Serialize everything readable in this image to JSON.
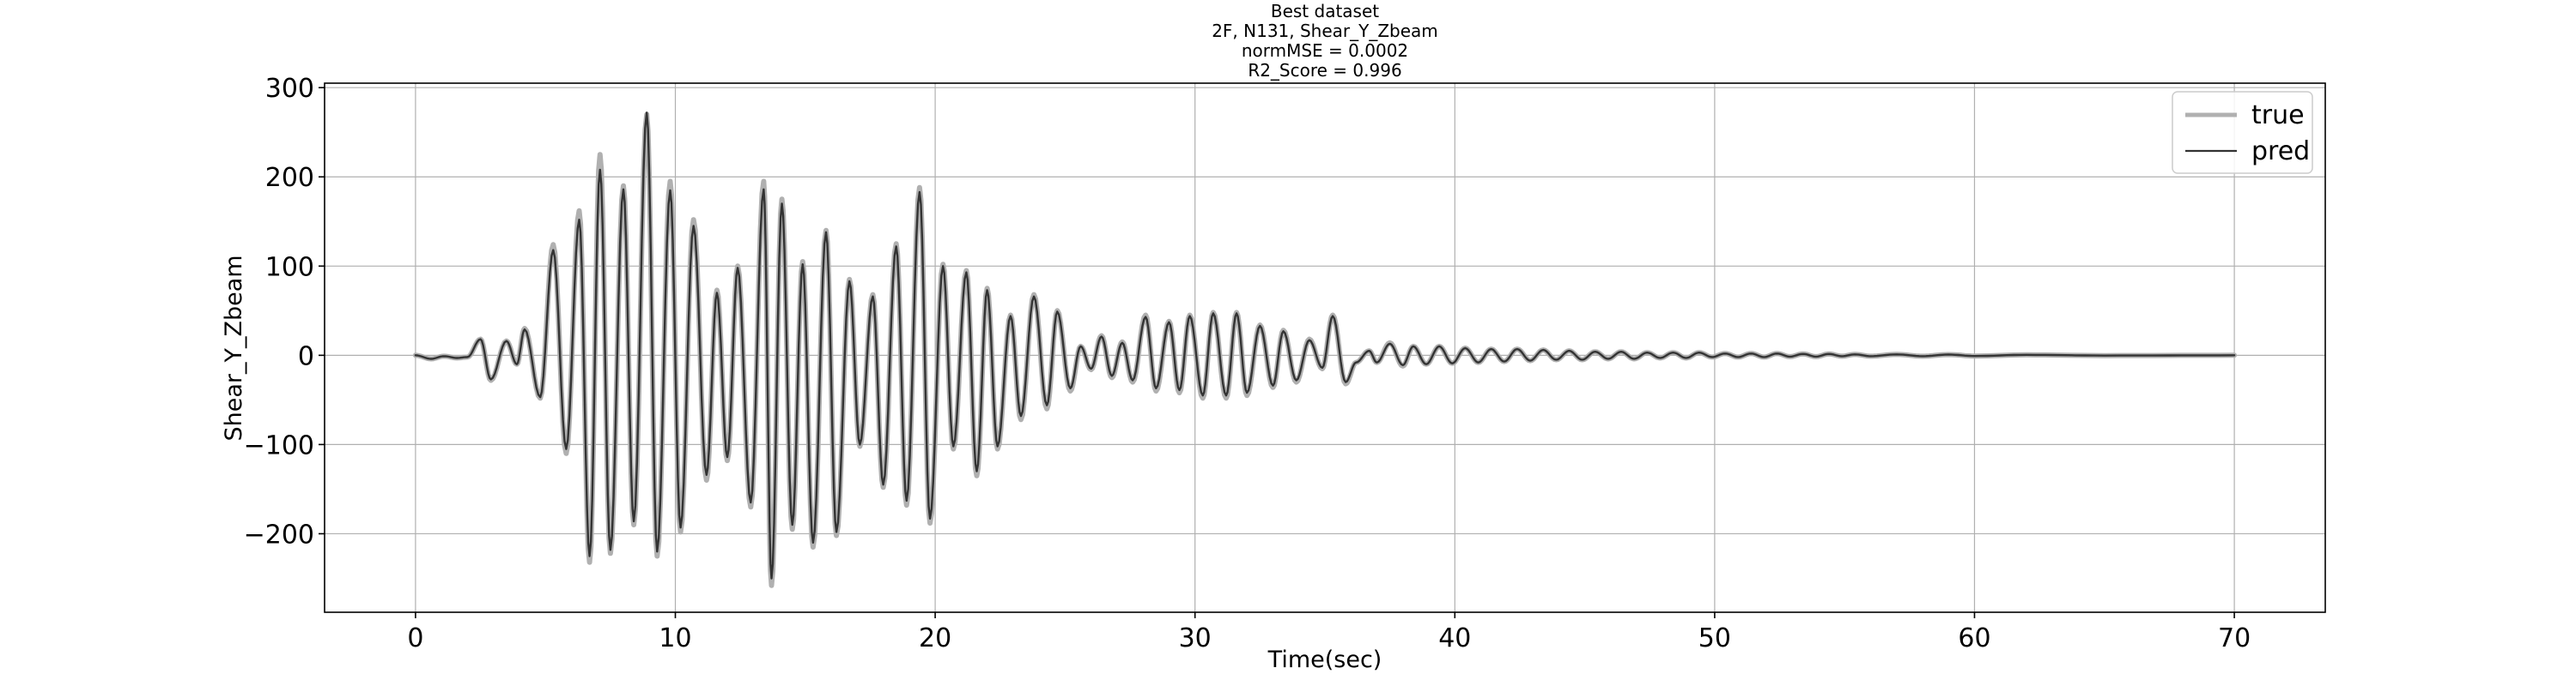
{
  "chart_data": {
    "type": "line",
    "title_lines": [
      "Best dataset",
      "2F, N131, Shear_Y_Zbeam",
      "normMSE = 0.0002",
      "R2_Score = 0.996"
    ],
    "xlabel": "Time(sec)",
    "ylabel": "Shear_Y_Zbeam",
    "xlim": [
      -3.5,
      73.5
    ],
    "ylim": [
      -288,
      305
    ],
    "xticks": [
      0,
      10,
      20,
      30,
      40,
      50,
      60,
      70
    ],
    "yticks": [
      -200,
      -100,
      0,
      100,
      200,
      300
    ],
    "xtick_labels": [
      "0",
      "10",
      "20",
      "30",
      "40",
      "50",
      "60",
      "70"
    ],
    "ytick_labels": [
      "−200",
      "−100",
      "0",
      "100",
      "200",
      "300"
    ],
    "grid": true,
    "legend_position": "top-right",
    "series": [
      {
        "name": "true",
        "color": "#b0b0b0",
        "peaks": [
          [
            0,
            0
          ],
          [
            0.6,
            -4
          ],
          [
            1.1,
            -1
          ],
          [
            1.6,
            -3
          ],
          [
            2.0,
            -2
          ],
          [
            2.5,
            18
          ],
          [
            2.9,
            -28
          ],
          [
            3.5,
            16
          ],
          [
            3.9,
            -10
          ],
          [
            4.2,
            30
          ],
          [
            4.8,
            -48
          ],
          [
            5.3,
            124
          ],
          [
            5.8,
            -110
          ],
          [
            6.3,
            162
          ],
          [
            6.7,
            -232
          ],
          [
            7.1,
            225
          ],
          [
            7.5,
            -222
          ],
          [
            8.0,
            190
          ],
          [
            8.4,
            -190
          ],
          [
            8.9,
            270
          ],
          [
            9.3,
            -225
          ],
          [
            9.8,
            195
          ],
          [
            10.2,
            -198
          ],
          [
            10.7,
            152
          ],
          [
            11.2,
            -140
          ],
          [
            11.6,
            73
          ],
          [
            12.0,
            -118
          ],
          [
            12.4,
            100
          ],
          [
            12.9,
            -170
          ],
          [
            13.4,
            195
          ],
          [
            13.7,
            -258
          ],
          [
            14.1,
            175
          ],
          [
            14.5,
            -195
          ],
          [
            14.9,
            105
          ],
          [
            15.3,
            -215
          ],
          [
            15.8,
            140
          ],
          [
            16.2,
            -202
          ],
          [
            16.7,
            85
          ],
          [
            17.1,
            -102
          ],
          [
            17.6,
            68
          ],
          [
            18.0,
            -148
          ],
          [
            18.5,
            125
          ],
          [
            18.9,
            -168
          ],
          [
            19.4,
            188
          ],
          [
            19.8,
            -188
          ],
          [
            20.3,
            102
          ],
          [
            20.7,
            -105
          ],
          [
            21.2,
            95
          ],
          [
            21.6,
            -135
          ],
          [
            22.0,
            75
          ],
          [
            22.4,
            -105
          ],
          [
            22.9,
            45
          ],
          [
            23.3,
            -72
          ],
          [
            23.8,
            68
          ],
          [
            24.3,
            -60
          ],
          [
            24.7,
            50
          ],
          [
            25.2,
            -40
          ],
          [
            25.6,
            10
          ],
          [
            26.0,
            -16
          ],
          [
            26.4,
            22
          ],
          [
            26.8,
            -25
          ],
          [
            27.2,
            15
          ],
          [
            27.6,
            -30
          ],
          [
            28.1,
            45
          ],
          [
            28.5,
            -40
          ],
          [
            29.0,
            38
          ],
          [
            29.4,
            -42
          ],
          [
            29.8,
            45
          ],
          [
            30.3,
            -48
          ],
          [
            30.7,
            48
          ],
          [
            31.2,
            -48
          ],
          [
            31.6,
            48
          ],
          [
            32.0,
            -45
          ],
          [
            32.5,
            34
          ],
          [
            33.0,
            -36
          ],
          [
            33.4,
            28
          ],
          [
            33.9,
            -30
          ],
          [
            34.4,
            18
          ],
          [
            34.9,
            -15
          ],
          [
            35.3,
            45
          ],
          [
            35.8,
            -32
          ],
          [
            36.2,
            -8
          ],
          [
            36.7,
            5
          ],
          [
            37.0,
            -8
          ],
          [
            37.5,
            14
          ],
          [
            38.0,
            -12
          ],
          [
            38.4,
            10
          ],
          [
            38.9,
            -10
          ],
          [
            39.4,
            10
          ],
          [
            39.9,
            -9
          ],
          [
            40.4,
            8
          ],
          [
            40.9,
            -8
          ],
          [
            41.4,
            7
          ],
          [
            41.9,
            -7
          ],
          [
            42.4,
            7
          ],
          [
            42.9,
            -6
          ],
          [
            43.4,
            6
          ],
          [
            43.9,
            -5
          ],
          [
            44.4,
            5
          ],
          [
            44.9,
            -5
          ],
          [
            45.4,
            4
          ],
          [
            45.9,
            -4
          ],
          [
            46.4,
            4
          ],
          [
            46.9,
            -4
          ],
          [
            47.4,
            3
          ],
          [
            47.9,
            -3
          ],
          [
            48.4,
            3
          ],
          [
            48.9,
            -3
          ],
          [
            49.4,
            3
          ],
          [
            49.9,
            -2
          ],
          [
            50.4,
            2
          ],
          [
            50.9,
            -2
          ],
          [
            51.4,
            2
          ],
          [
            51.9,
            -2
          ],
          [
            52.4,
            2
          ],
          [
            52.9,
            -1.5
          ],
          [
            53.4,
            1.5
          ],
          [
            53.9,
            -1.5
          ],
          [
            54.4,
            1.5
          ],
          [
            54.9,
            -1
          ],
          [
            55.4,
            1
          ],
          [
            56.0,
            -1
          ],
          [
            57.0,
            1
          ],
          [
            58.0,
            -1
          ],
          [
            59.0,
            0.8
          ],
          [
            60.0,
            -0.8
          ],
          [
            62.0,
            0.5
          ],
          [
            65.0,
            -0.3
          ],
          [
            70.0,
            0
          ]
        ]
      },
      {
        "name": "pred",
        "color": "#333333",
        "peaks": [
          [
            0,
            0
          ],
          [
            0.6,
            -4
          ],
          [
            1.1,
            -1
          ],
          [
            1.6,
            -3
          ],
          [
            2.0,
            -2
          ],
          [
            2.5,
            18
          ],
          [
            2.9,
            -27
          ],
          [
            3.5,
            16
          ],
          [
            3.9,
            -10
          ],
          [
            4.2,
            29
          ],
          [
            4.8,
            -47
          ],
          [
            5.3,
            118
          ],
          [
            5.8,
            -105
          ],
          [
            6.3,
            152
          ],
          [
            6.7,
            -225
          ],
          [
            7.1,
            208
          ],
          [
            7.5,
            -218
          ],
          [
            8.0,
            186
          ],
          [
            8.4,
            -186
          ],
          [
            8.9,
            272
          ],
          [
            9.3,
            -220
          ],
          [
            9.8,
            185
          ],
          [
            10.2,
            -193
          ],
          [
            10.7,
            145
          ],
          [
            11.2,
            -134
          ],
          [
            11.6,
            70
          ],
          [
            12.0,
            -114
          ],
          [
            12.4,
            98
          ],
          [
            12.9,
            -165
          ],
          [
            13.4,
            186
          ],
          [
            13.7,
            -250
          ],
          [
            14.1,
            170
          ],
          [
            14.5,
            -190
          ],
          [
            14.9,
            102
          ],
          [
            15.3,
            -210
          ],
          [
            15.8,
            138
          ],
          [
            16.2,
            -198
          ],
          [
            16.7,
            83
          ],
          [
            17.1,
            -100
          ],
          [
            17.6,
            66
          ],
          [
            18.0,
            -145
          ],
          [
            18.5,
            122
          ],
          [
            18.9,
            -163
          ],
          [
            19.4,
            183
          ],
          [
            19.8,
            -183
          ],
          [
            20.3,
            100
          ],
          [
            20.7,
            -102
          ],
          [
            21.2,
            93
          ],
          [
            21.6,
            -130
          ],
          [
            22.0,
            73
          ],
          [
            22.4,
            -102
          ],
          [
            22.9,
            44
          ],
          [
            23.3,
            -68
          ],
          [
            23.8,
            66
          ],
          [
            24.3,
            -56
          ],
          [
            24.7,
            49
          ],
          [
            25.2,
            -37
          ],
          [
            25.6,
            10
          ],
          [
            26.0,
            -15
          ],
          [
            26.4,
            21
          ],
          [
            26.8,
            -23
          ],
          [
            27.2,
            14
          ],
          [
            27.6,
            -28
          ],
          [
            28.1,
            43
          ],
          [
            28.5,
            -37
          ],
          [
            29.0,
            37
          ],
          [
            29.4,
            -39
          ],
          [
            29.8,
            44
          ],
          [
            30.3,
            -45
          ],
          [
            30.7,
            47
          ],
          [
            31.2,
            -45
          ],
          [
            31.6,
            47
          ],
          [
            32.0,
            -42
          ],
          [
            32.5,
            33
          ],
          [
            33.0,
            -34
          ],
          [
            33.4,
            27
          ],
          [
            33.9,
            -28
          ],
          [
            34.4,
            17
          ],
          [
            34.9,
            -14
          ],
          [
            35.3,
            44
          ],
          [
            35.8,
            -30
          ],
          [
            36.2,
            -8
          ],
          [
            36.7,
            5
          ],
          [
            37.0,
            -8
          ],
          [
            37.5,
            13
          ],
          [
            38.0,
            -11
          ],
          [
            38.4,
            10
          ],
          [
            38.9,
            -10
          ],
          [
            39.4,
            10
          ],
          [
            39.9,
            -9
          ],
          [
            40.4,
            8
          ],
          [
            40.9,
            -8
          ],
          [
            41.4,
            7
          ],
          [
            41.9,
            -7
          ],
          [
            42.4,
            7
          ],
          [
            42.9,
            -6
          ],
          [
            43.4,
            6
          ],
          [
            43.9,
            -5
          ],
          [
            44.4,
            5
          ],
          [
            44.9,
            -5
          ],
          [
            45.4,
            4
          ],
          [
            45.9,
            -4
          ],
          [
            46.4,
            4
          ],
          [
            46.9,
            -4
          ],
          [
            47.4,
            3
          ],
          [
            47.9,
            -3
          ],
          [
            48.4,
            3
          ],
          [
            48.9,
            -3
          ],
          [
            49.4,
            3
          ],
          [
            49.9,
            -2
          ],
          [
            50.4,
            2
          ],
          [
            50.9,
            -2
          ],
          [
            51.4,
            2
          ],
          [
            51.9,
            -2
          ],
          [
            52.4,
            2
          ],
          [
            52.9,
            -1.5
          ],
          [
            53.4,
            1.5
          ],
          [
            53.9,
            -1.5
          ],
          [
            54.4,
            1.5
          ],
          [
            54.9,
            -1
          ],
          [
            55.4,
            1
          ],
          [
            56.0,
            -1
          ],
          [
            57.0,
            1
          ],
          [
            58.0,
            -1
          ],
          [
            59.0,
            0.8
          ],
          [
            60.0,
            -0.8
          ],
          [
            62.0,
            0.5
          ],
          [
            65.0,
            -0.3
          ],
          [
            70.0,
            0
          ]
        ]
      }
    ]
  }
}
